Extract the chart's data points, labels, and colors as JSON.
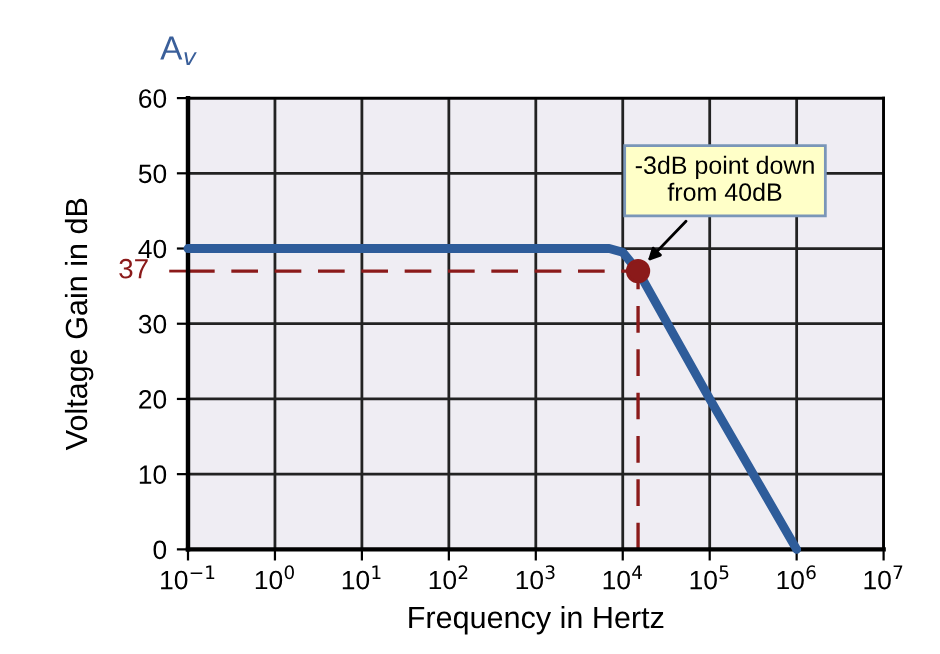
{
  "chart_data": {
    "type": "line",
    "xlabel": "Frequency in Hertz",
    "ylabel": "Voltage Gain in dB",
    "log": "x",
    "grid": true,
    "legend": false,
    "xlim": [
      0.1,
      10000000
    ],
    "ylim": [
      0,
      60
    ],
    "xticks": [
      {
        "value": 0.1,
        "label": "10$^{−1}$"
      },
      {
        "value": 1,
        "label": "10$^{0}$"
      },
      {
        "value": 10,
        "label": "10$^{1}$"
      },
      {
        "value": 100,
        "label": "10$^{2}$"
      },
      {
        "value": 1000,
        "label": "10$^{3}$"
      },
      {
        "value": 10000,
        "label": "10$^{4}$"
      },
      {
        "value": 100000,
        "label": "10$^{5}$"
      },
      {
        "value": 1000000,
        "label": "10$^{6}$"
      },
      {
        "value": 10000000,
        "label": "10$^{7}$"
      }
    ],
    "yticks": [
      0,
      10,
      20,
      30,
      40,
      50,
      60
    ],
    "series": [
      {
        "color": "#2e5c9a",
        "x": [
          0.1,
          7000,
          10000,
          15000,
          100000,
          1000000
        ],
        "values": [
          40,
          40,
          39.5,
          37,
          20,
          0
        ],
        "marker": "none",
        "line_style": "solid"
      },
      {
        "type": "scatter",
        "color": "#8b1a1a",
        "x": [
          15000
        ],
        "values": [
          37
        ],
        "marker": "circle"
      }
    ],
    "ref_lines": [
      {
        "axis": "y",
        "value": 37,
        "label": "37",
        "color": "#8b1a1a",
        "line_style": "dashed"
      },
      {
        "axis": "x",
        "value": 15000,
        "color": "#8b1a1a",
        "line_style": "dashed"
      }
    ],
    "annotations": [
      {
        "text": "-3dB point down\nfrom 40dB",
        "x": 15000,
        "y": 37
      },
      "A$_{v}$"
    ]
  }
}
